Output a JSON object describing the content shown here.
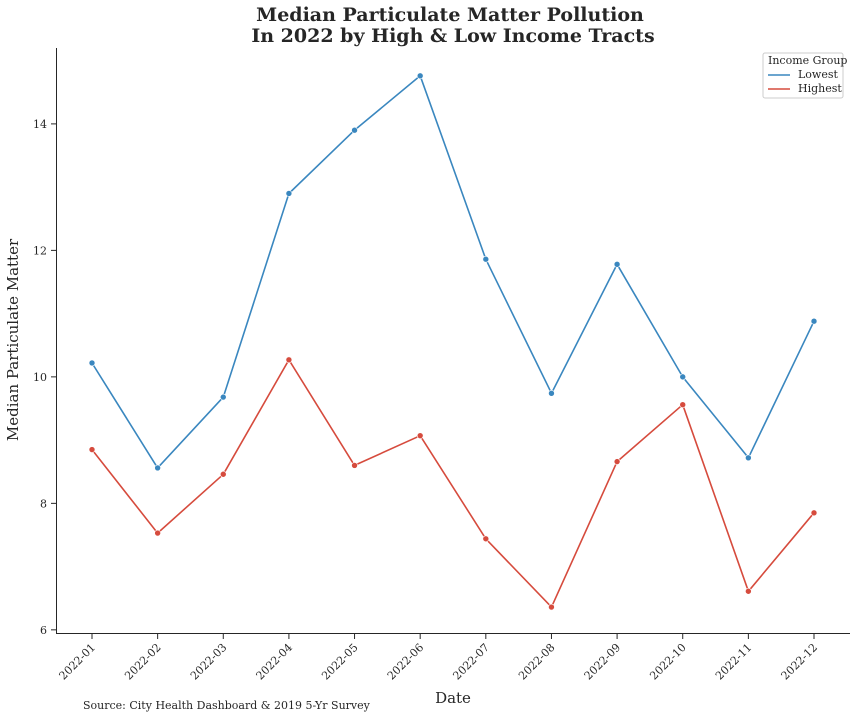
{
  "chart_data": {
    "type": "line",
    "title": "Median Particulate Matter Pollution",
    "subtitle": "In 2022 by High & Low Income Tracts",
    "xlabel": "Date",
    "ylabel": "Median Particulate Matter",
    "categories": [
      "2022-01",
      "2022-02",
      "2022-03",
      "2022-04",
      "2022-05",
      "2022-06",
      "2022-07",
      "2022-08",
      "2022-09",
      "2022-10",
      "2022-11",
      "2022-12"
    ],
    "ylim": [
      5.95,
      15.2
    ],
    "yticks": [
      6,
      8,
      10,
      12,
      14
    ],
    "grid": false,
    "legend": {
      "title": "Income Group",
      "placement": "top-right"
    },
    "series": [
      {
        "name": "Lowest",
        "color": "#3a87bf",
        "values": [
          10.22,
          8.56,
          9.68,
          12.9,
          13.9,
          14.76,
          11.86,
          9.74,
          11.78,
          10.0,
          8.72,
          10.88
        ]
      },
      {
        "name": "Highest",
        "color": "#d64b3d",
        "values": [
          8.85,
          7.53,
          8.46,
          10.27,
          8.6,
          9.07,
          7.44,
          6.36,
          8.66,
          9.56,
          6.61,
          7.85
        ]
      }
    ]
  },
  "footer": {
    "source": "Source: City Health Dashboard & 2019 5-Yr Survey"
  }
}
